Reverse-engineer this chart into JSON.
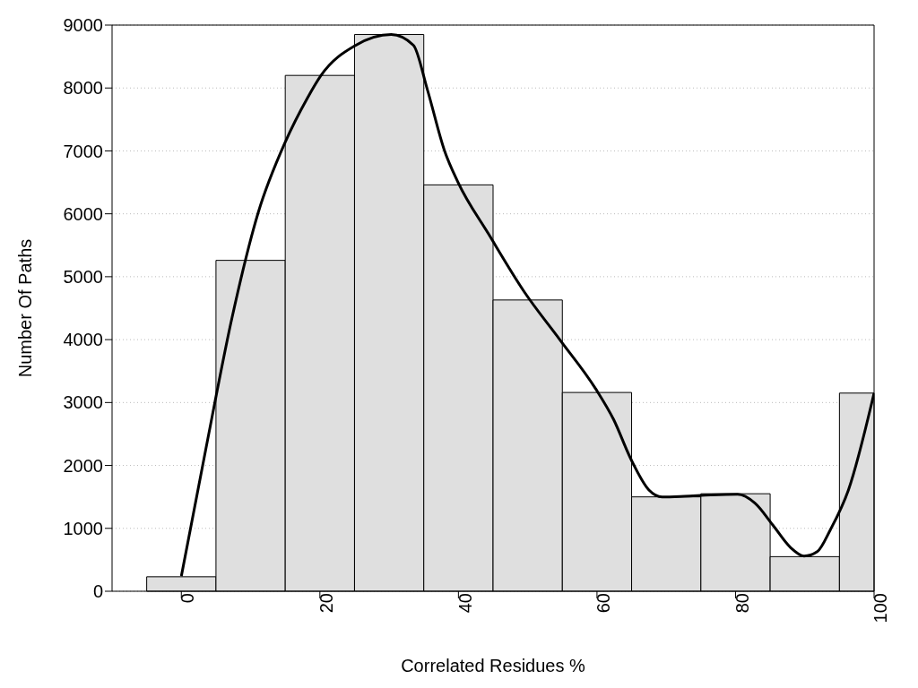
{
  "chart_data": {
    "type": "histogram",
    "xlabel": "Correlated Residues %",
    "ylabel": "Number Of Paths",
    "bins": [
      -5,
      5,
      15,
      25,
      35,
      45,
      55,
      65,
      75,
      85,
      95,
      100
    ],
    "values": [
      230,
      5260,
      8200,
      8850,
      6460,
      4630,
      3160,
      1500,
      1550,
      550,
      3150
    ],
    "color": "#dfdfdf",
    "xlim": [
      -10,
      100
    ],
    "xticks": [
      0,
      20,
      40,
      60,
      80,
      100
    ],
    "ylim": [
      0,
      9000
    ],
    "yticks": [
      0,
      1000,
      2000,
      3000,
      4000,
      5000,
      6000,
      7000,
      8000,
      9000
    ],
    "grid": "y",
    "series": [
      {
        "type": "line",
        "color": "#000000",
        "x": [
          0,
          3.5,
          7.3,
          11.1,
          15,
          18.2,
          20.1,
          25.2,
          30.3,
          33.5,
          35.5,
          38,
          39.9,
          44.4,
          49.5,
          54.7,
          59.8,
          62.4,
          64.9,
          67.5,
          69.4,
          72.6,
          76.4,
          80.3,
          82.8,
          85.4,
          87.9,
          89.9,
          91.8,
          93.7,
          96.3,
          100
        ],
        "values": [
          240,
          2240,
          4340,
          6020,
          7140,
          7840,
          8190,
          8680,
          8850,
          8680,
          7980,
          7000,
          6510,
          5670,
          4760,
          3990,
          3220,
          2730,
          2100,
          1610,
          1500,
          1510,
          1530,
          1540,
          1400,
          1050,
          700,
          560,
          630,
          980,
          1610,
          3150
        ]
      }
    ]
  }
}
